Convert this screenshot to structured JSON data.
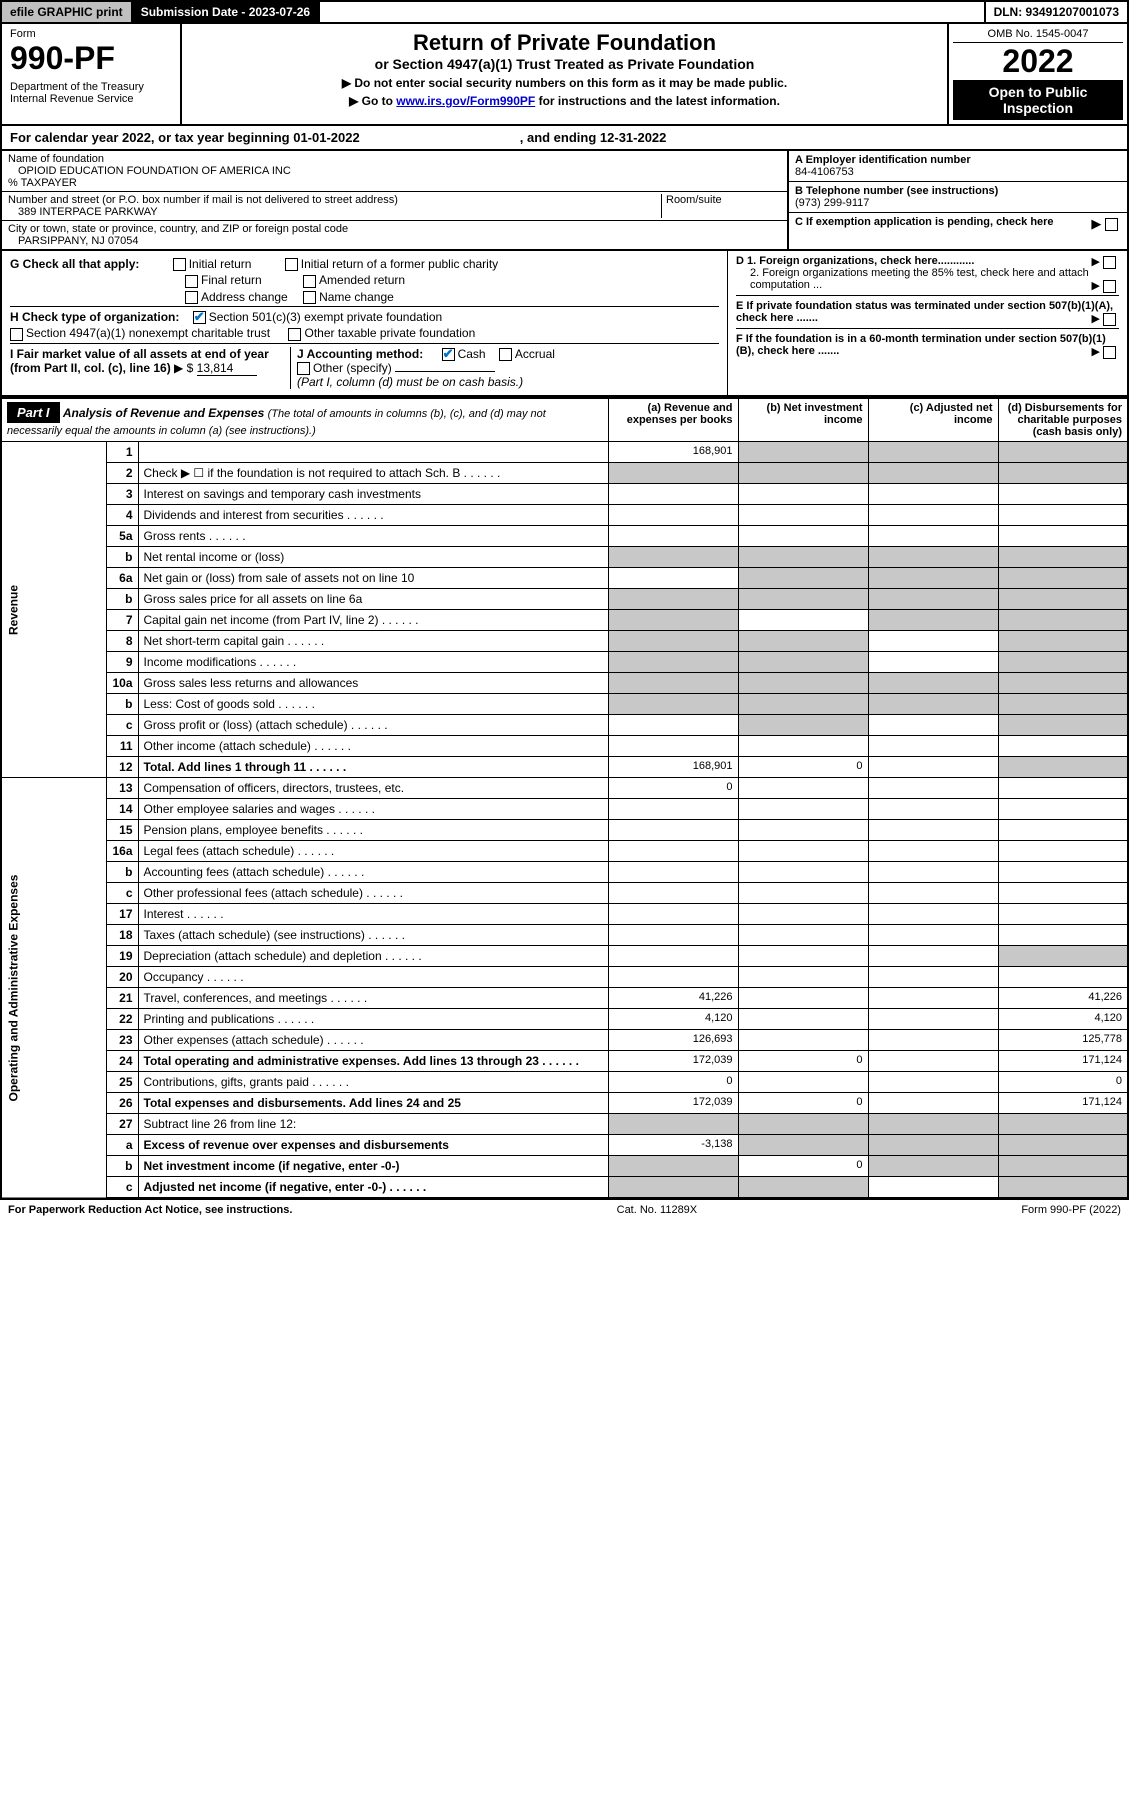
{
  "topbar": {
    "efile": "efile GRAPHIC print",
    "subdate_label": "Submission Date - 2023-07-26",
    "dln": "DLN: 93491207001073"
  },
  "header": {
    "form_label": "Form",
    "form_no": "990-PF",
    "dept": "Department of the Treasury\nInternal Revenue Service",
    "title": "Return of Private Foundation",
    "subtitle": "or Section 4947(a)(1) Trust Treated as Private Foundation",
    "note1": "▶ Do not enter social security numbers on this form as it may be made public.",
    "note2_pre": "▶ Go to ",
    "note2_link": "www.irs.gov/Form990PF",
    "note2_post": " for instructions and the latest information.",
    "omb": "OMB No. 1545-0047",
    "year": "2022",
    "open": "Open to Public Inspection"
  },
  "calendar": {
    "text_pre": "For calendar year 2022, or tax year beginning 01-01-2022",
    "text_mid": ", and ending 12-31-2022"
  },
  "info": {
    "name_label": "Name of foundation",
    "name": "OPIOID EDUCATION FOUNDATION OF AMERICA INC",
    "taxpayer": "% TAXPAYER",
    "addr_label": "Number and street (or P.O. box number if mail is not delivered to street address)",
    "addr": "389 INTERPACE PARKWAY",
    "room_label": "Room/suite",
    "city_label": "City or town, state or province, country, and ZIP or foreign postal code",
    "city": "PARSIPPANY, NJ  07054",
    "a_label": "A Employer identification number",
    "a_val": "84-4106753",
    "b_label": "B Telephone number (see instructions)",
    "b_val": "(973) 299-9117",
    "c_label": "C If exemption application is pending, check here"
  },
  "g": {
    "label": "G Check all that apply:",
    "initial": "Initial return",
    "final": "Final return",
    "address": "Address change",
    "initial_former": "Initial return of a former public charity",
    "amended": "Amended return",
    "name_change": "Name change"
  },
  "h": {
    "label": "H Check type of organization:",
    "h1": "Section 501(c)(3) exempt private foundation",
    "h2": "Section 4947(a)(1) nonexempt charitable trust",
    "h3": "Other taxable private foundation"
  },
  "i": {
    "label": "I Fair market value of all assets at end of year (from Part II, col. (c), line 16)",
    "arrow": "▶ $",
    "value": "13,814"
  },
  "j": {
    "label": "J Accounting method:",
    "cash": "Cash",
    "accrual": "Accrual",
    "other": "Other (specify)",
    "note": "(Part I, column (d) must be on cash basis.)"
  },
  "d": {
    "d1": "D 1. Foreign organizations, check here............",
    "d2": "2. Foreign organizations meeting the 85% test, check here and attach computation ..."
  },
  "e": {
    "label": "E  If private foundation status was terminated under section 507(b)(1)(A), check here ......."
  },
  "f": {
    "label": "F  If the foundation is in a 60-month termination under section 507(b)(1)(B), check here ......."
  },
  "part1": {
    "badge": "Part I",
    "title": "Analysis of Revenue and Expenses",
    "note": "(The total of amounts in columns (b), (c), and (d) may not necessarily equal the amounts in column (a) (see instructions).)",
    "col_a": "(a) Revenue and expenses per books",
    "col_b": "(b) Net investment income",
    "col_c": "(c) Adjusted net income",
    "col_d": "(d) Disbursements for charitable purposes (cash basis only)"
  },
  "sides": {
    "revenue": "Revenue",
    "expenses": "Operating and Administrative Expenses"
  },
  "rows": [
    {
      "n": "1",
      "d": "",
      "a": "168,901",
      "b": "",
      "c": "",
      "shade_bcd": true
    },
    {
      "n": "2",
      "d": "Check ▶ ☐ if the foundation is not required to attach Sch. B",
      "dots": true,
      "shade_all": true
    },
    {
      "n": "3",
      "d": "Interest on savings and temporary cash investments"
    },
    {
      "n": "4",
      "d": "Dividends and interest from securities",
      "dots": true
    },
    {
      "n": "5a",
      "d": "Gross rents",
      "dots": true
    },
    {
      "n": "b",
      "d": "Net rental income or (loss)",
      "input": true,
      "shade_all": true
    },
    {
      "n": "6a",
      "d": "Net gain or (loss) from sale of assets not on line 10",
      "shade_bcd": true
    },
    {
      "n": "b",
      "d": "Gross sales price for all assets on line 6a",
      "input": true,
      "shade_all": true
    },
    {
      "n": "7",
      "d": "Capital gain net income (from Part IV, line 2)",
      "dots": true,
      "shade_acd": true
    },
    {
      "n": "8",
      "d": "Net short-term capital gain",
      "dots": true,
      "shade_abd": true
    },
    {
      "n": "9",
      "d": "Income modifications",
      "dots": true,
      "shade_abd": true
    },
    {
      "n": "10a",
      "d": "Gross sales less returns and allowances",
      "input": true,
      "shade_all": true
    },
    {
      "n": "b",
      "d": "Less: Cost of goods sold",
      "dots": true,
      "input": true,
      "shade_all": true
    },
    {
      "n": "c",
      "d": "Gross profit or (loss) (attach schedule)",
      "dots": true,
      "shade_bd": true
    },
    {
      "n": "11",
      "d": "Other income (attach schedule)",
      "dots": true
    },
    {
      "n": "12",
      "d": "Total. Add lines 1 through 11",
      "dots": true,
      "bold": true,
      "a": "168,901",
      "b": "0",
      "shade_d": true
    },
    {
      "n": "13",
      "d": "Compensation of officers, directors, trustees, etc.",
      "a": "0"
    },
    {
      "n": "14",
      "d": "Other employee salaries and wages",
      "dots": true
    },
    {
      "n": "15",
      "d": "Pension plans, employee benefits",
      "dots": true
    },
    {
      "n": "16a",
      "d": "Legal fees (attach schedule)",
      "dots": true
    },
    {
      "n": "b",
      "d": "Accounting fees (attach schedule)",
      "dots": true
    },
    {
      "n": "c",
      "d": "Other professional fees (attach schedule)",
      "dots": true
    },
    {
      "n": "17",
      "d": "Interest",
      "dots": true
    },
    {
      "n": "18",
      "d": "Taxes (attach schedule) (see instructions)",
      "dots": true
    },
    {
      "n": "19",
      "d": "Depreciation (attach schedule) and depletion",
      "dots": true,
      "shade_d": true
    },
    {
      "n": "20",
      "d": "Occupancy",
      "dots": true
    },
    {
      "n": "21",
      "d": "Travel, conferences, and meetings",
      "dots": true,
      "a": "41,226",
      "d2": "41,226"
    },
    {
      "n": "22",
      "d": "Printing and publications",
      "dots": true,
      "a": "4,120",
      "d2": "4,120"
    },
    {
      "n": "23",
      "d": "Other expenses (attach schedule)",
      "dots": true,
      "a": "126,693",
      "d2": "125,778"
    },
    {
      "n": "24",
      "d": "Total operating and administrative expenses. Add lines 13 through 23",
      "dots": true,
      "bold": true,
      "a": "172,039",
      "b": "0",
      "d2": "171,124"
    },
    {
      "n": "25",
      "d": "Contributions, gifts, grants paid",
      "dots": true,
      "a": "0",
      "d2": "0"
    },
    {
      "n": "26",
      "d": "Total expenses and disbursements. Add lines 24 and 25",
      "bold": true,
      "a": "172,039",
      "b": "0",
      "d2": "171,124"
    },
    {
      "n": "27",
      "d": "Subtract line 26 from line 12:",
      "shade_all": true
    },
    {
      "n": "a",
      "d": "Excess of revenue over expenses and disbursements",
      "bold": true,
      "a": "-3,138",
      "shade_bcd": true
    },
    {
      "n": "b",
      "d": "Net investment income (if negative, enter -0-)",
      "bold": true,
      "b": "0",
      "shade_acd": true
    },
    {
      "n": "c",
      "d": "Adjusted net income (if negative, enter -0-)",
      "bold": true,
      "dots": true,
      "shade_abd": true
    }
  ],
  "footer": {
    "left": "For Paperwork Reduction Act Notice, see instructions.",
    "mid": "Cat. No. 11289X",
    "right": "Form 990-PF (2022)"
  }
}
